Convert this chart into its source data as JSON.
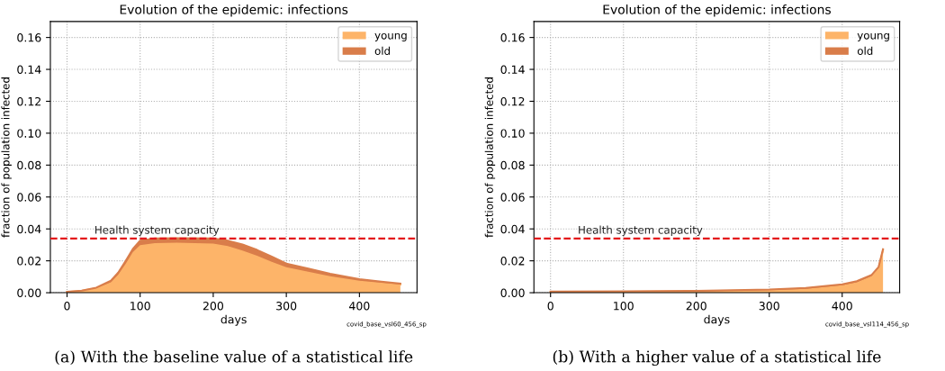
{
  "chart_data": [
    {
      "type": "area",
      "stacked": true,
      "title": "Evolution of the epidemic: infections",
      "xlabel": "days",
      "ylabel": "fraction of population infected",
      "x": [
        0,
        20,
        40,
        60,
        70,
        80,
        90,
        100,
        120,
        150,
        200,
        220,
        240,
        260,
        280,
        300,
        330,
        360,
        400,
        430,
        456
      ],
      "series": [
        {
          "name": "young",
          "color": "#fdb469",
          "values": [
            0.0004,
            0.0011,
            0.0028,
            0.0066,
            0.0113,
            0.0179,
            0.0255,
            0.0298,
            0.0311,
            0.0313,
            0.0308,
            0.0292,
            0.0264,
            0.0232,
            0.0194,
            0.016,
            0.0132,
            0.0104,
            0.0075,
            0.0062,
            0.0051
          ]
        },
        {
          "name": "old",
          "color": "#d97d4a",
          "values": [
            0.0002,
            0.0002,
            0.0004,
            0.0009,
            0.0013,
            0.0019,
            0.0019,
            0.0028,
            0.0029,
            0.0029,
            0.0032,
            0.0034,
            0.0038,
            0.0036,
            0.0032,
            0.0023,
            0.0019,
            0.0015,
            0.001,
            0.0008,
            0.0006
          ]
        }
      ],
      "xlim": [
        -22.8,
        478.8
      ],
      "xticks": [
        0,
        100,
        200,
        300,
        400
      ],
      "ylim": [
        0,
        0.17
      ],
      "yticks": [
        {
          "value": 0,
          "label": "0.00"
        },
        {
          "value": 0.02,
          "label": "0.02"
        },
        {
          "value": 0.04,
          "label": "0.04"
        },
        {
          "value": 0.06,
          "label": "0.06"
        },
        {
          "value": 0.08,
          "label": "0.08"
        },
        {
          "value": 0.1,
          "label": "0.10"
        },
        {
          "value": 0.12,
          "label": "0.12"
        },
        {
          "value": 0.14,
          "label": "0.14"
        },
        {
          "value": 0.16,
          "label": "0.16"
        }
      ],
      "ref_lines": [
        {
          "axis": "y",
          "value": 0.034,
          "label": "Health system capacity",
          "color": "#e41a1c",
          "line_style": "dashed"
        }
      ],
      "grid": true,
      "legend": "top right",
      "annotations": [
        "covid_base_vsl60_456_sp",
        "(a) With the baseline value of a statistical life"
      ]
    },
    {
      "type": "area",
      "stacked": true,
      "title": "Evolution of the epidemic: infections",
      "xlabel": "days",
      "ylabel": "fraction of population infected",
      "x": [
        0,
        100,
        200,
        300,
        350,
        400,
        420,
        440,
        450,
        456
      ],
      "series": [
        {
          "name": "young",
          "color": "#fdb469",
          "values": [
            0.0004,
            0.0006,
            0.0009,
            0.0016,
            0.0025,
            0.0047,
            0.0066,
            0.0104,
            0.0156,
            0.0266
          ]
        },
        {
          "name": "old",
          "color": "#d97d4a",
          "values": [
            0.0003,
            0.0003,
            0.0003,
            0.0004,
            0.0005,
            0.0006,
            0.0006,
            0.0006,
            0.0006,
            0.0006
          ]
        }
      ],
      "xlim": [
        -22.8,
        478.8
      ],
      "xticks": [
        0,
        100,
        200,
        300,
        400
      ],
      "ylim": [
        0,
        0.17
      ],
      "yticks": [
        {
          "value": 0,
          "label": "0.00"
        },
        {
          "value": 0.02,
          "label": "0.02"
        },
        {
          "value": 0.04,
          "label": "0.04"
        },
        {
          "value": 0.06,
          "label": "0.06"
        },
        {
          "value": 0.08,
          "label": "0.08"
        },
        {
          "value": 0.1,
          "label": "0.10"
        },
        {
          "value": 0.12,
          "label": "0.12"
        },
        {
          "value": 0.14,
          "label": "0.14"
        },
        {
          "value": 0.16,
          "label": "0.16"
        }
      ],
      "ref_lines": [
        {
          "axis": "y",
          "value": 0.034,
          "label": "Health system capacity",
          "color": "#e41a1c",
          "line_style": "dashed"
        }
      ],
      "grid": true,
      "legend": "top right",
      "annotations": [
        "covid_base_vsl114_456_sp",
        "(b) With a higher value of a statistical life"
      ]
    }
  ]
}
